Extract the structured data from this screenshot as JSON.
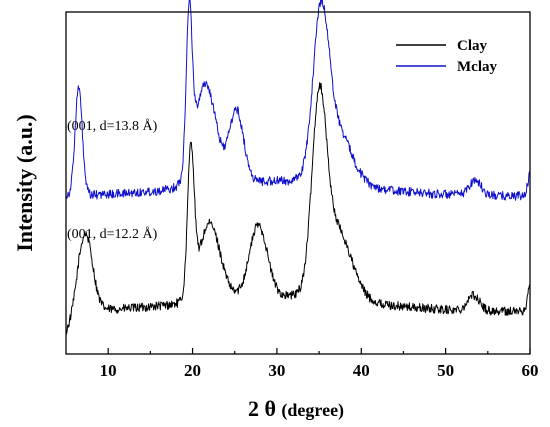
{
  "chart_data": {
    "type": "line",
    "xlabel_main": "2 θ ",
    "xlabel_paren": "(degree)",
    "ylabel": "Intensity (a.u.)",
    "xlim": [
      5,
      60
    ],
    "xticks": [
      "10",
      "20",
      "30",
      "40",
      "50",
      "60"
    ],
    "yticks_visible": false,
    "legend_position": "top-right",
    "series": [
      {
        "name": "Clay",
        "color": "#000000",
        "peaks": [
          {
            "x": 7.3,
            "h": 0.3,
            "w": 1.2
          },
          {
            "x": 19.8,
            "h": 0.56,
            "w": 0.55
          },
          {
            "x": 22.0,
            "h": 0.3,
            "w": 1.8
          },
          {
            "x": 27.8,
            "h": 0.28,
            "w": 1.5
          },
          {
            "x": 35.0,
            "h": 0.68,
            "w": 1.2
          },
          {
            "x": 37.0,
            "h": 0.28,
            "w": 2.5
          },
          {
            "x": 53.3,
            "h": 0.06,
            "w": 1.0
          },
          {
            "x": 60.0,
            "h": 0.1,
            "w": 0.4
          }
        ],
        "baseline": 0.0
      },
      {
        "name": "Mclay",
        "color": "#1111cc",
        "peaks": [
          {
            "x": 6.5,
            "h": 0.42,
            "w": 0.6
          },
          {
            "x": 19.6,
            "h": 0.6,
            "w": 0.5
          },
          {
            "x": 21.5,
            "h": 0.4,
            "w": 1.8
          },
          {
            "x": 25.2,
            "h": 0.28,
            "w": 1.2
          },
          {
            "x": 35.2,
            "h": 0.58,
            "w": 1.3
          },
          {
            "x": 37.0,
            "h": 0.22,
            "w": 2.5
          },
          {
            "x": 53.5,
            "h": 0.06,
            "w": 1.0
          },
          {
            "x": 60.0,
            "h": 0.08,
            "w": 0.4
          }
        ],
        "baseline": 0.45
      }
    ],
    "annotations": [
      {
        "text": "(001, d=13.8 Å)",
        "x": 5.2,
        "y": 1.12
      },
      {
        "text": "(001, d=12.2 Å)",
        "x": 5.2,
        "y": 0.52
      }
    ]
  }
}
